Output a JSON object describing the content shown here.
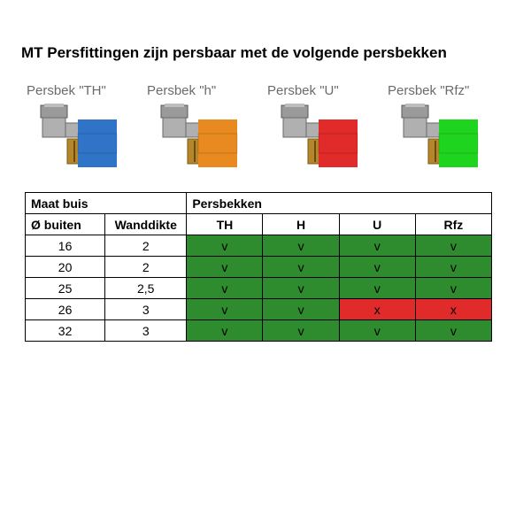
{
  "title": "MT Persfittingen zijn persbaar met de volgende persbekken",
  "jaws": [
    {
      "label": "Persbek \"TH\"",
      "color": "#2f74c6"
    },
    {
      "label": "Persbek \"h\"",
      "color": "#e88a1f"
    },
    {
      "label": "Persbek \"U\"",
      "color": "#e12a2a"
    },
    {
      "label": "Persbek \"Rfz\"",
      "color": "#1fd41f"
    }
  ],
  "table": {
    "header_group_left": "Maat buis",
    "header_group_right": "Persbekken",
    "columns": [
      "Ø buiten",
      "Wanddikte",
      "TH",
      "H",
      "U",
      "Rfz"
    ],
    "rows": [
      {
        "od": "16",
        "wall": "2",
        "cells": [
          {
            "v": "v",
            "ok": true
          },
          {
            "v": "v",
            "ok": true
          },
          {
            "v": "v",
            "ok": true
          },
          {
            "v": "v",
            "ok": true
          }
        ]
      },
      {
        "od": "20",
        "wall": "2",
        "cells": [
          {
            "v": "v",
            "ok": true
          },
          {
            "v": "v",
            "ok": true
          },
          {
            "v": "v",
            "ok": true
          },
          {
            "v": "v",
            "ok": true
          }
        ]
      },
      {
        "od": "25",
        "wall": "2,5",
        "cells": [
          {
            "v": "v",
            "ok": true
          },
          {
            "v": "v",
            "ok": true
          },
          {
            "v": "v",
            "ok": true
          },
          {
            "v": "v",
            "ok": true
          }
        ]
      },
      {
        "od": "26",
        "wall": "3",
        "cells": [
          {
            "v": "v",
            "ok": true
          },
          {
            "v": "v",
            "ok": true
          },
          {
            "v": "x",
            "ok": false
          },
          {
            "v": "x",
            "ok": false
          }
        ]
      },
      {
        "od": "32",
        "wall": "3",
        "cells": [
          {
            "v": "v",
            "ok": true
          },
          {
            "v": "v",
            "ok": true
          },
          {
            "v": "v",
            "ok": true
          },
          {
            "v": "v",
            "ok": true
          }
        ]
      }
    ],
    "ok_color": "#2e8b2e",
    "bad_color": "#e12a2a"
  }
}
